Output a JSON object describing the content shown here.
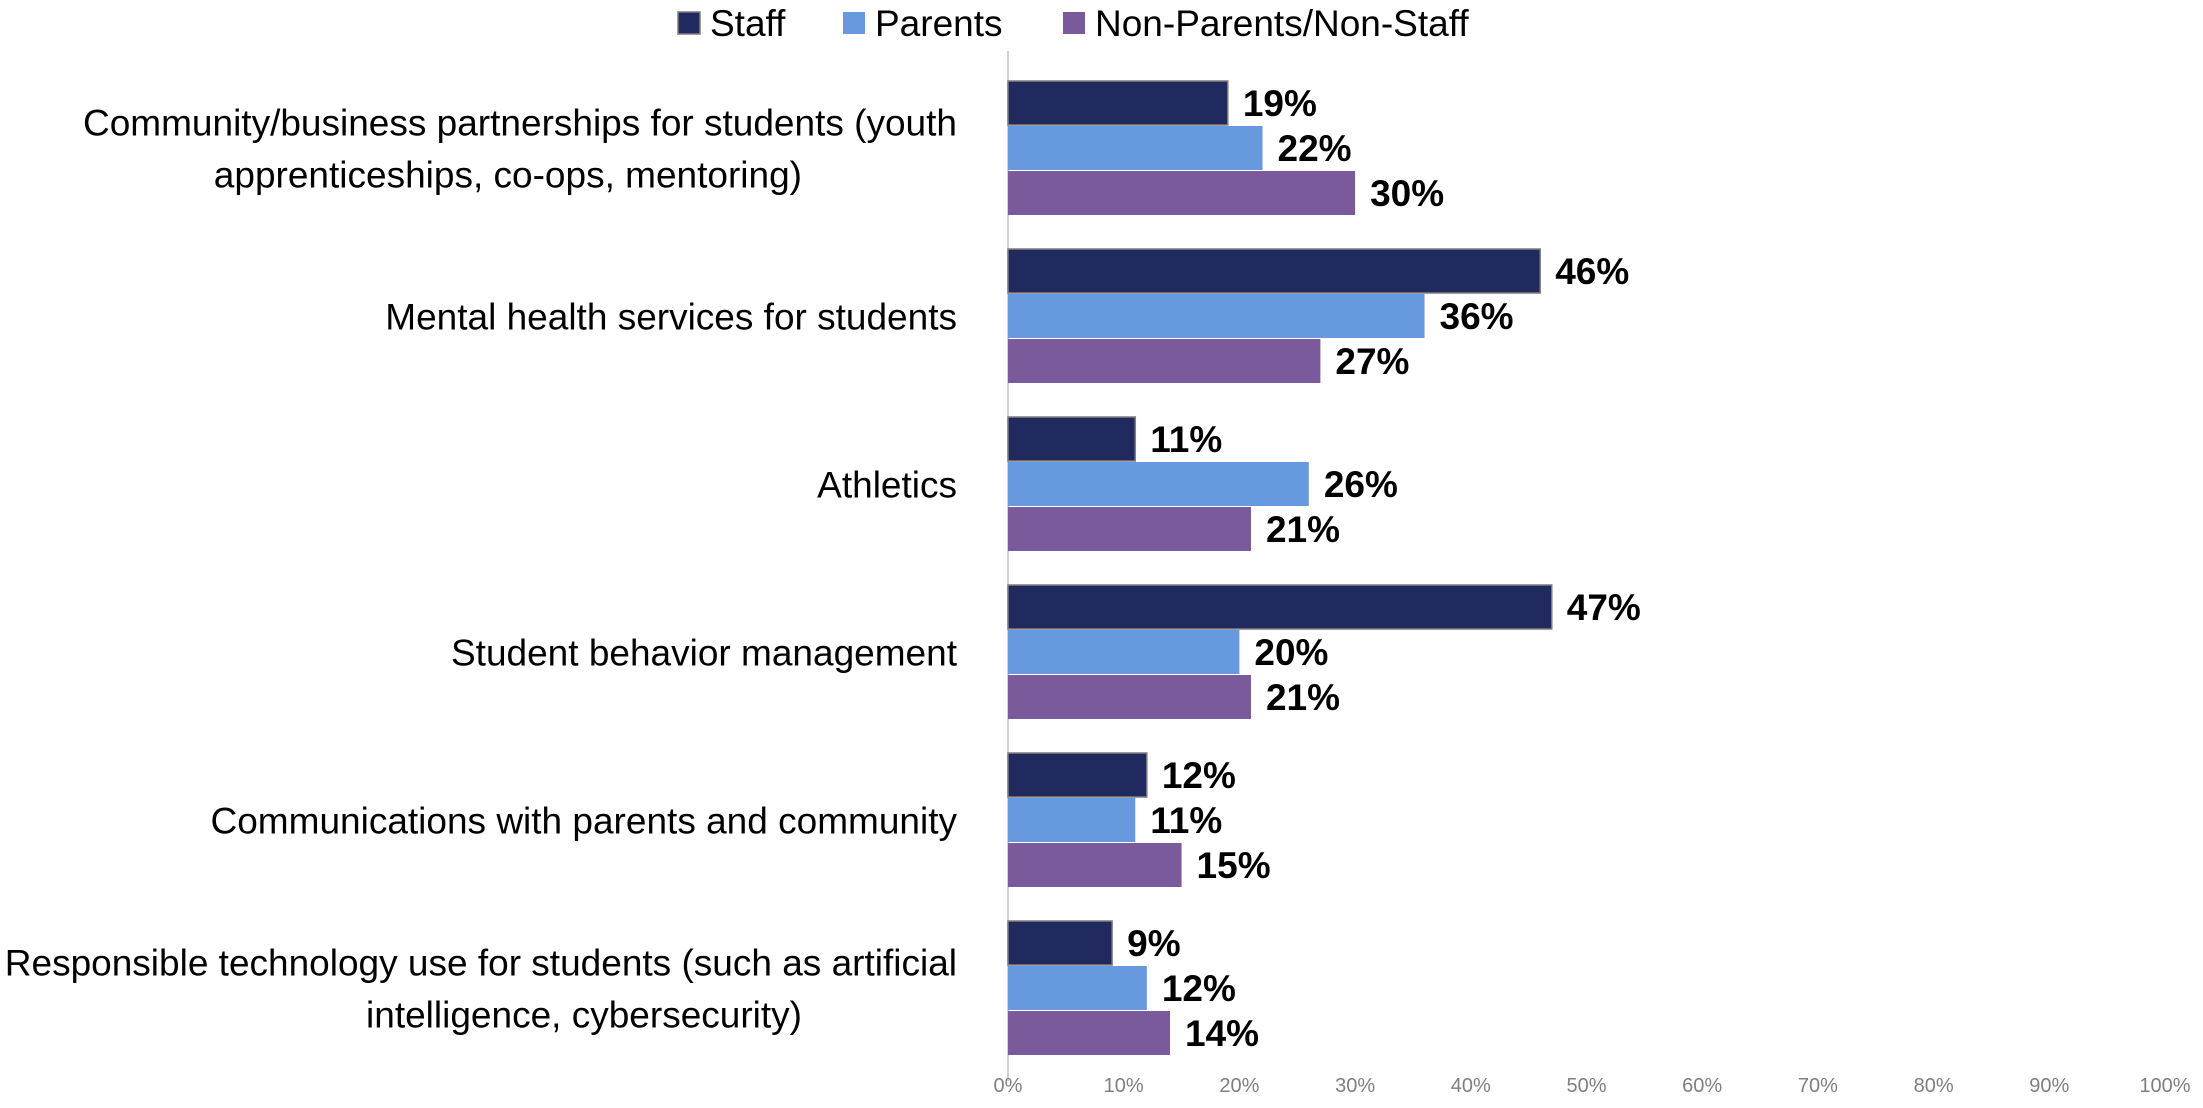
{
  "chart_data": {
    "type": "bar",
    "orientation": "horizontal",
    "categories": [
      "Community/business partnerships for students (youth apprenticeships, co-ops, mentoring)",
      "Mental health services for students",
      "Athletics",
      "Student behavior management",
      "Communications with parents and community",
      "Responsible technology use for students (such as artificial intelligence, cybersecurity)"
    ],
    "category_lines": [
      [
        "Community/business partnerships for students (youth",
        "apprenticeships, co-ops, mentoring)"
      ],
      [
        "Mental health services for students"
      ],
      [
        "Athletics"
      ],
      [
        "Student behavior management"
      ],
      [
        "Communications with parents and community"
      ],
      [
        "Responsible technology use for students (such as artificial",
        "intelligence, cybersecurity)"
      ]
    ],
    "series": [
      {
        "name": "Staff",
        "color": "#202a5e",
        "values": [
          19,
          46,
          11,
          47,
          12,
          9
        ]
      },
      {
        "name": "Parents",
        "color": "#6699dd",
        "values": [
          22,
          36,
          26,
          20,
          11,
          12
        ]
      },
      {
        "name": "Non-Parents/Non-Staff",
        "color": "#7b5a9c",
        "values": [
          30,
          27,
          21,
          21,
          15,
          14
        ]
      }
    ],
    "value_suffix": "%",
    "xlim": [
      0,
      100
    ],
    "xticks": [
      0,
      10,
      20,
      30,
      40,
      50,
      60,
      70,
      80,
      90,
      100
    ],
    "xtick_labels": [
      "0%",
      "10%",
      "20%",
      "30%",
      "40%",
      "50%",
      "60%",
      "70%",
      "80%",
      "90%",
      "100%"
    ],
    "legend_position": "top-center",
    "grid": false
  }
}
